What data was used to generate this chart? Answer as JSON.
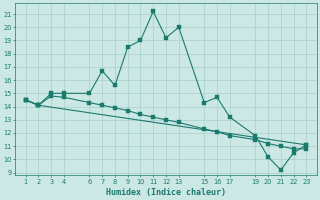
{
  "xlabel": "Humidex (Indice chaleur)",
  "bg_color": "#cce8e4",
  "grid_color": "#aacfcb",
  "line_color": "#1a7a6e",
  "ylim": [
    8.8,
    21.8
  ],
  "yticks": [
    9,
    10,
    11,
    12,
    13,
    14,
    15,
    16,
    17,
    18,
    19,
    20,
    21
  ],
  "xticks": [
    1,
    2,
    3,
    4,
    6,
    7,
    8,
    9,
    10,
    11,
    12,
    13,
    15,
    16,
    17,
    19,
    20,
    21,
    22,
    23
  ],
  "line1_x": [
    1,
    2,
    3,
    4,
    6,
    7,
    8,
    9,
    10,
    11,
    12,
    13,
    15,
    16,
    17,
    19,
    20,
    21,
    22,
    23
  ],
  "line1_y": [
    14.5,
    14.1,
    15.0,
    15.0,
    15.0,
    16.7,
    15.6,
    18.5,
    19.0,
    21.2,
    19.2,
    20.0,
    14.3,
    14.7,
    13.2,
    11.8,
    10.2,
    9.2,
    10.5,
    11.1
  ],
  "line2_x": [
    1,
    2,
    3,
    4,
    6,
    7,
    8,
    9,
    10,
    11,
    12,
    13,
    15,
    16,
    17,
    19,
    20,
    21,
    22,
    23
  ],
  "line2_y": [
    14.5,
    14.1,
    14.8,
    14.7,
    14.3,
    14.1,
    13.9,
    13.7,
    13.4,
    13.2,
    13.0,
    12.8,
    12.3,
    12.1,
    11.8,
    11.5,
    11.2,
    11.0,
    10.8,
    10.8
  ],
  "line3_x": [
    1,
    2,
    23
  ],
  "line3_y": [
    14.5,
    14.1,
    11.1
  ]
}
